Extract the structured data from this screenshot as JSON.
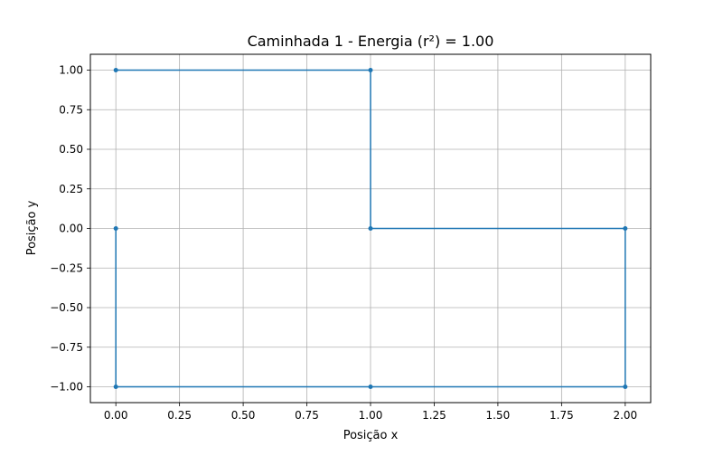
{
  "chart_data": {
    "type": "line",
    "title": "Caminhada 1 - Energia (r²) = 1.00",
    "xlabel": "Posição x",
    "ylabel": "Posição y",
    "xlim": [
      -0.1,
      2.1
    ],
    "ylim": [
      -1.1,
      1.1
    ],
    "xticks": [
      0.0,
      0.25,
      0.5,
      0.75,
      1.0,
      1.25,
      1.5,
      1.75,
      2.0
    ],
    "yticks": [
      -1.0,
      -0.75,
      -0.5,
      -0.25,
      0.0,
      0.25,
      0.5,
      0.75,
      1.0
    ],
    "xtick_labels": [
      "0.00",
      "0.25",
      "0.50",
      "0.75",
      "1.00",
      "1.25",
      "1.50",
      "1.75",
      "2.00"
    ],
    "ytick_labels": [
      "−1.00",
      "−0.75",
      "−0.50",
      "−0.25",
      "0.00",
      "0.25",
      "0.50",
      "0.75",
      "1.00"
    ],
    "grid": true,
    "series": [
      {
        "color": "#1f77b4",
        "x": [
          0,
          0,
          1,
          2,
          2,
          1,
          1,
          0
        ],
        "y": [
          0,
          -1,
          -1,
          -1,
          0,
          0,
          1,
          1
        ]
      }
    ]
  }
}
